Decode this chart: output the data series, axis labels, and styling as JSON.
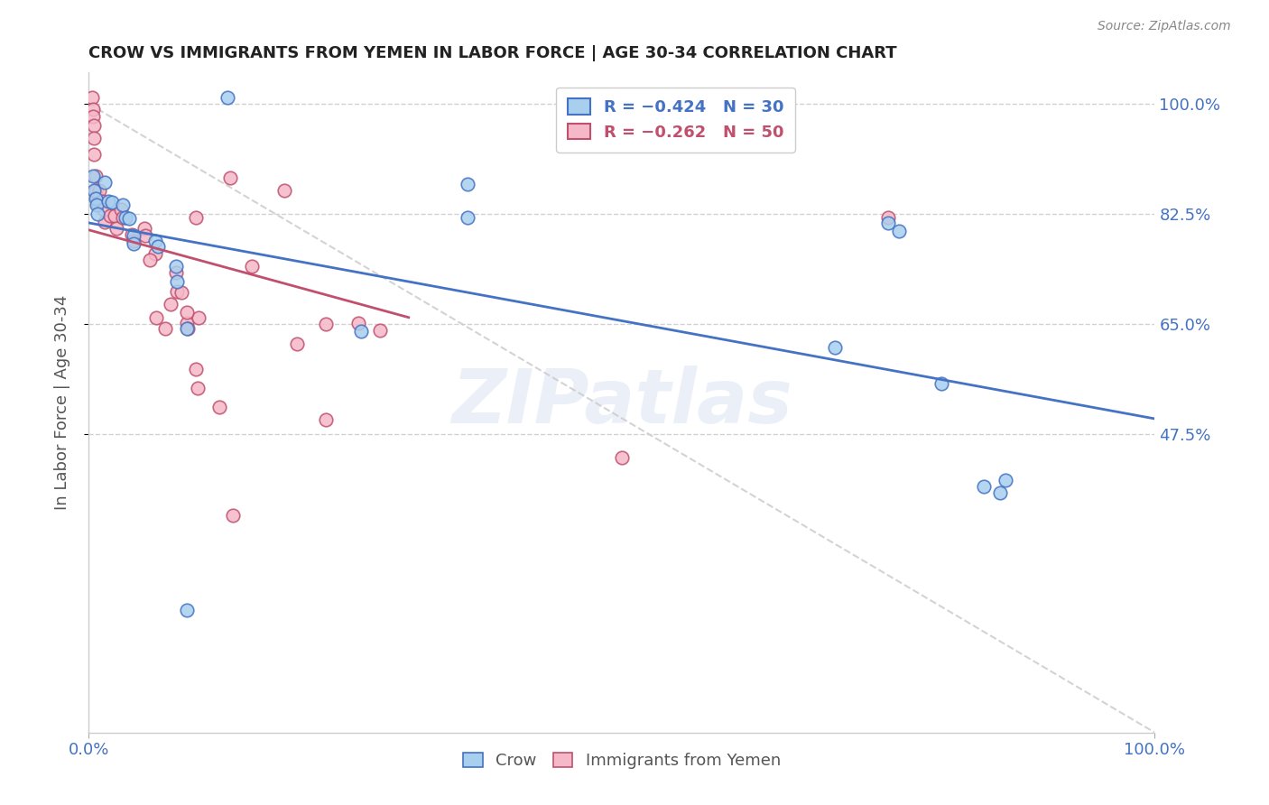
{
  "title": "CROW VS IMMIGRANTS FROM YEMEN IN LABOR FORCE | AGE 30-34 CORRELATION CHART",
  "source": "Source: ZipAtlas.com",
  "ylabel": "In Labor Force | Age 30-34",
  "background_color": "#ffffff",
  "crow_R": -0.424,
  "crow_N": 30,
  "yemen_R": -0.262,
  "yemen_N": 50,
  "xlim": [
    0.0,
    1.0
  ],
  "ylim": [
    0.0,
    1.05
  ],
  "ytick_positions": [
    1.0,
    0.825,
    0.65,
    0.475
  ],
  "ytick_labels": [
    "100.0%",
    "82.5%",
    "65.0%",
    "47.5%"
  ],
  "xtick_positions": [
    0.0,
    1.0
  ],
  "xtick_labels": [
    "0.0%",
    "100.0%"
  ],
  "crow_color": "#A8CFEE",
  "crow_edge_color": "#4472C4",
  "yemen_color": "#F5B8C8",
  "yemen_edge_color": "#C0506E",
  "crow_line_color": "#4472C4",
  "yemen_line_color": "#C0506E",
  "crow_x": [
    0.13,
    0.004,
    0.005,
    0.006,
    0.007,
    0.008,
    0.015,
    0.018,
    0.022,
    0.032,
    0.034,
    0.038,
    0.042,
    0.042,
    0.062,
    0.065,
    0.082,
    0.083,
    0.092,
    0.255,
    0.355,
    0.355,
    0.7,
    0.75,
    0.76,
    0.8,
    0.84,
    0.855,
    0.86,
    0.092
  ],
  "crow_y": [
    1.01,
    0.885,
    0.862,
    0.85,
    0.84,
    0.825,
    0.875,
    0.845,
    0.843,
    0.84,
    0.82,
    0.818,
    0.79,
    0.778,
    0.782,
    0.773,
    0.742,
    0.718,
    0.642,
    0.638,
    0.872,
    0.82,
    0.612,
    0.81,
    0.798,
    0.555,
    0.392,
    0.382,
    0.402,
    0.195
  ],
  "yemen_x": [
    0.003,
    0.004,
    0.004,
    0.005,
    0.005,
    0.005,
    0.006,
    0.006,
    0.007,
    0.008,
    0.01,
    0.012,
    0.014,
    0.015,
    0.02,
    0.024,
    0.026,
    0.03,
    0.032,
    0.04,
    0.042,
    0.052,
    0.053,
    0.062,
    0.063,
    0.072,
    0.077,
    0.092,
    0.093,
    0.1,
    0.103,
    0.133,
    0.153,
    0.183,
    0.195,
    0.222,
    0.253,
    0.273,
    0.057,
    0.082,
    0.083,
    0.087,
    0.092,
    0.1,
    0.102,
    0.122,
    0.222,
    0.75,
    0.5,
    0.135
  ],
  "yemen_y": [
    1.01,
    0.992,
    0.98,
    0.965,
    0.945,
    0.92,
    0.885,
    0.862,
    0.852,
    0.842,
    0.862,
    0.845,
    0.832,
    0.812,
    0.822,
    0.822,
    0.802,
    0.832,
    0.82,
    0.792,
    0.782,
    0.802,
    0.79,
    0.762,
    0.66,
    0.642,
    0.682,
    0.652,
    0.642,
    0.82,
    0.66,
    0.882,
    0.742,
    0.862,
    0.618,
    0.65,
    0.652,
    0.64,
    0.752,
    0.732,
    0.702,
    0.7,
    0.668,
    0.578,
    0.548,
    0.518,
    0.498,
    0.82,
    0.438,
    0.345
  ],
  "legend_text_crow": "R = −0.424   N = 30",
  "legend_text_yemen": "R = −0.262   N = 50",
  "grid_color": "#cccccc",
  "watermark_color": "#4472C4",
  "watermark_alpha": 0.1,
  "watermark_text": "ZIPatlas",
  "scatter_size": 110,
  "scatter_alpha": 0.85,
  "line_width": 2.0,
  "edge_width": 1.2
}
